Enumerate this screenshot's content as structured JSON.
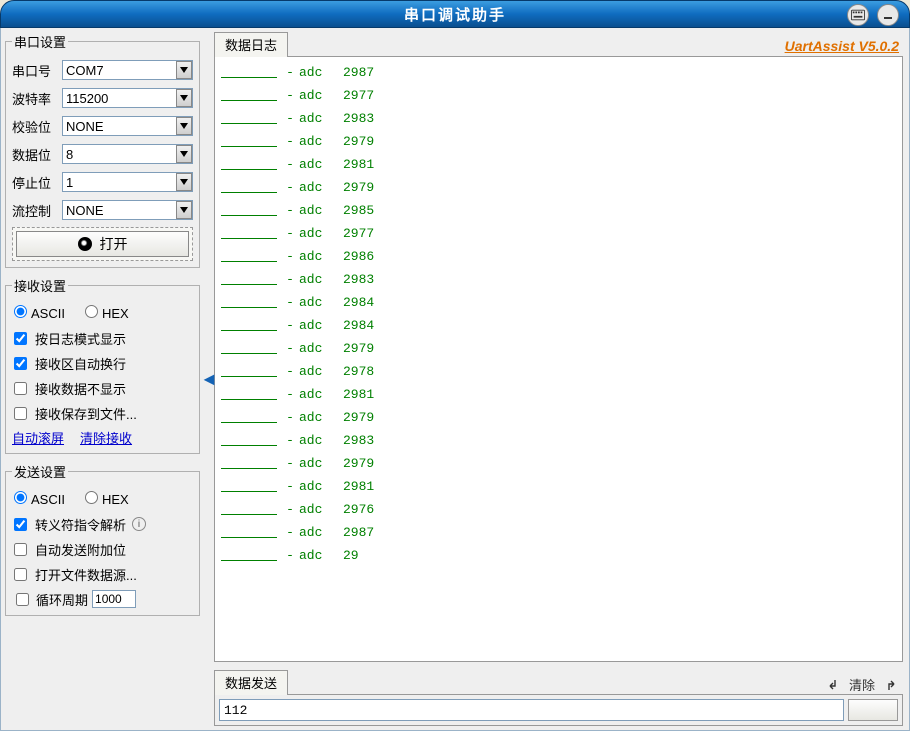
{
  "window": {
    "title": "串口调试助手"
  },
  "brand": "UartAssist V5.0.2",
  "port_settings": {
    "legend": "串口设置",
    "fields": {
      "port": {
        "label": "串口号",
        "value": "COM7"
      },
      "baud": {
        "label": "波特率",
        "value": "115200"
      },
      "parity": {
        "label": "校验位",
        "value": "NONE"
      },
      "databits": {
        "label": "数据位",
        "value": "8"
      },
      "stopbits": {
        "label": "停止位",
        "value": "1"
      },
      "flow": {
        "label": "流控制",
        "value": "NONE"
      }
    },
    "open_button": "打开"
  },
  "recv_settings": {
    "legend": "接收设置",
    "mode": {
      "ascii": "ASCII",
      "hex": "HEX",
      "selected": "ascii"
    },
    "checks": {
      "log_mode": {
        "label": "按日志模式显示",
        "checked": true
      },
      "auto_wrap": {
        "label": "接收区自动换行",
        "checked": true
      },
      "hide_recv": {
        "label": "接收数据不显示",
        "checked": false
      },
      "save_file": {
        "label": "接收保存到文件...",
        "checked": false
      }
    },
    "links": {
      "autoscroll": "自动滚屏",
      "clear": "清除接收"
    }
  },
  "send_settings": {
    "legend": "发送设置",
    "mode": {
      "ascii": "ASCII",
      "hex": "HEX",
      "selected": "ascii"
    },
    "checks": {
      "escape": {
        "label": "转义符指令解析",
        "checked": true,
        "info": true
      },
      "auto_append": {
        "label": "自动发送附加位",
        "checked": false
      },
      "open_file": {
        "label": "打开文件数据源...",
        "checked": false
      }
    },
    "cycle": {
      "label": "循环周期",
      "value": "1000",
      "checked": false
    }
  },
  "log": {
    "tab": "数据日志",
    "tag": "adc",
    "dash": "-",
    "values": [
      2987,
      2977,
      2983,
      2979,
      2981,
      2979,
      2985,
      2977,
      2986,
      2983,
      2984,
      2984,
      2979,
      2978,
      2981,
      2979,
      2983,
      2979,
      2981,
      2976,
      2987,
      29
    ],
    "text_color": "#008000",
    "underline_color": "#008000",
    "background": "#ffffff"
  },
  "send_panel": {
    "tab": "数据发送",
    "clear": "清除",
    "input_value": "112"
  }
}
